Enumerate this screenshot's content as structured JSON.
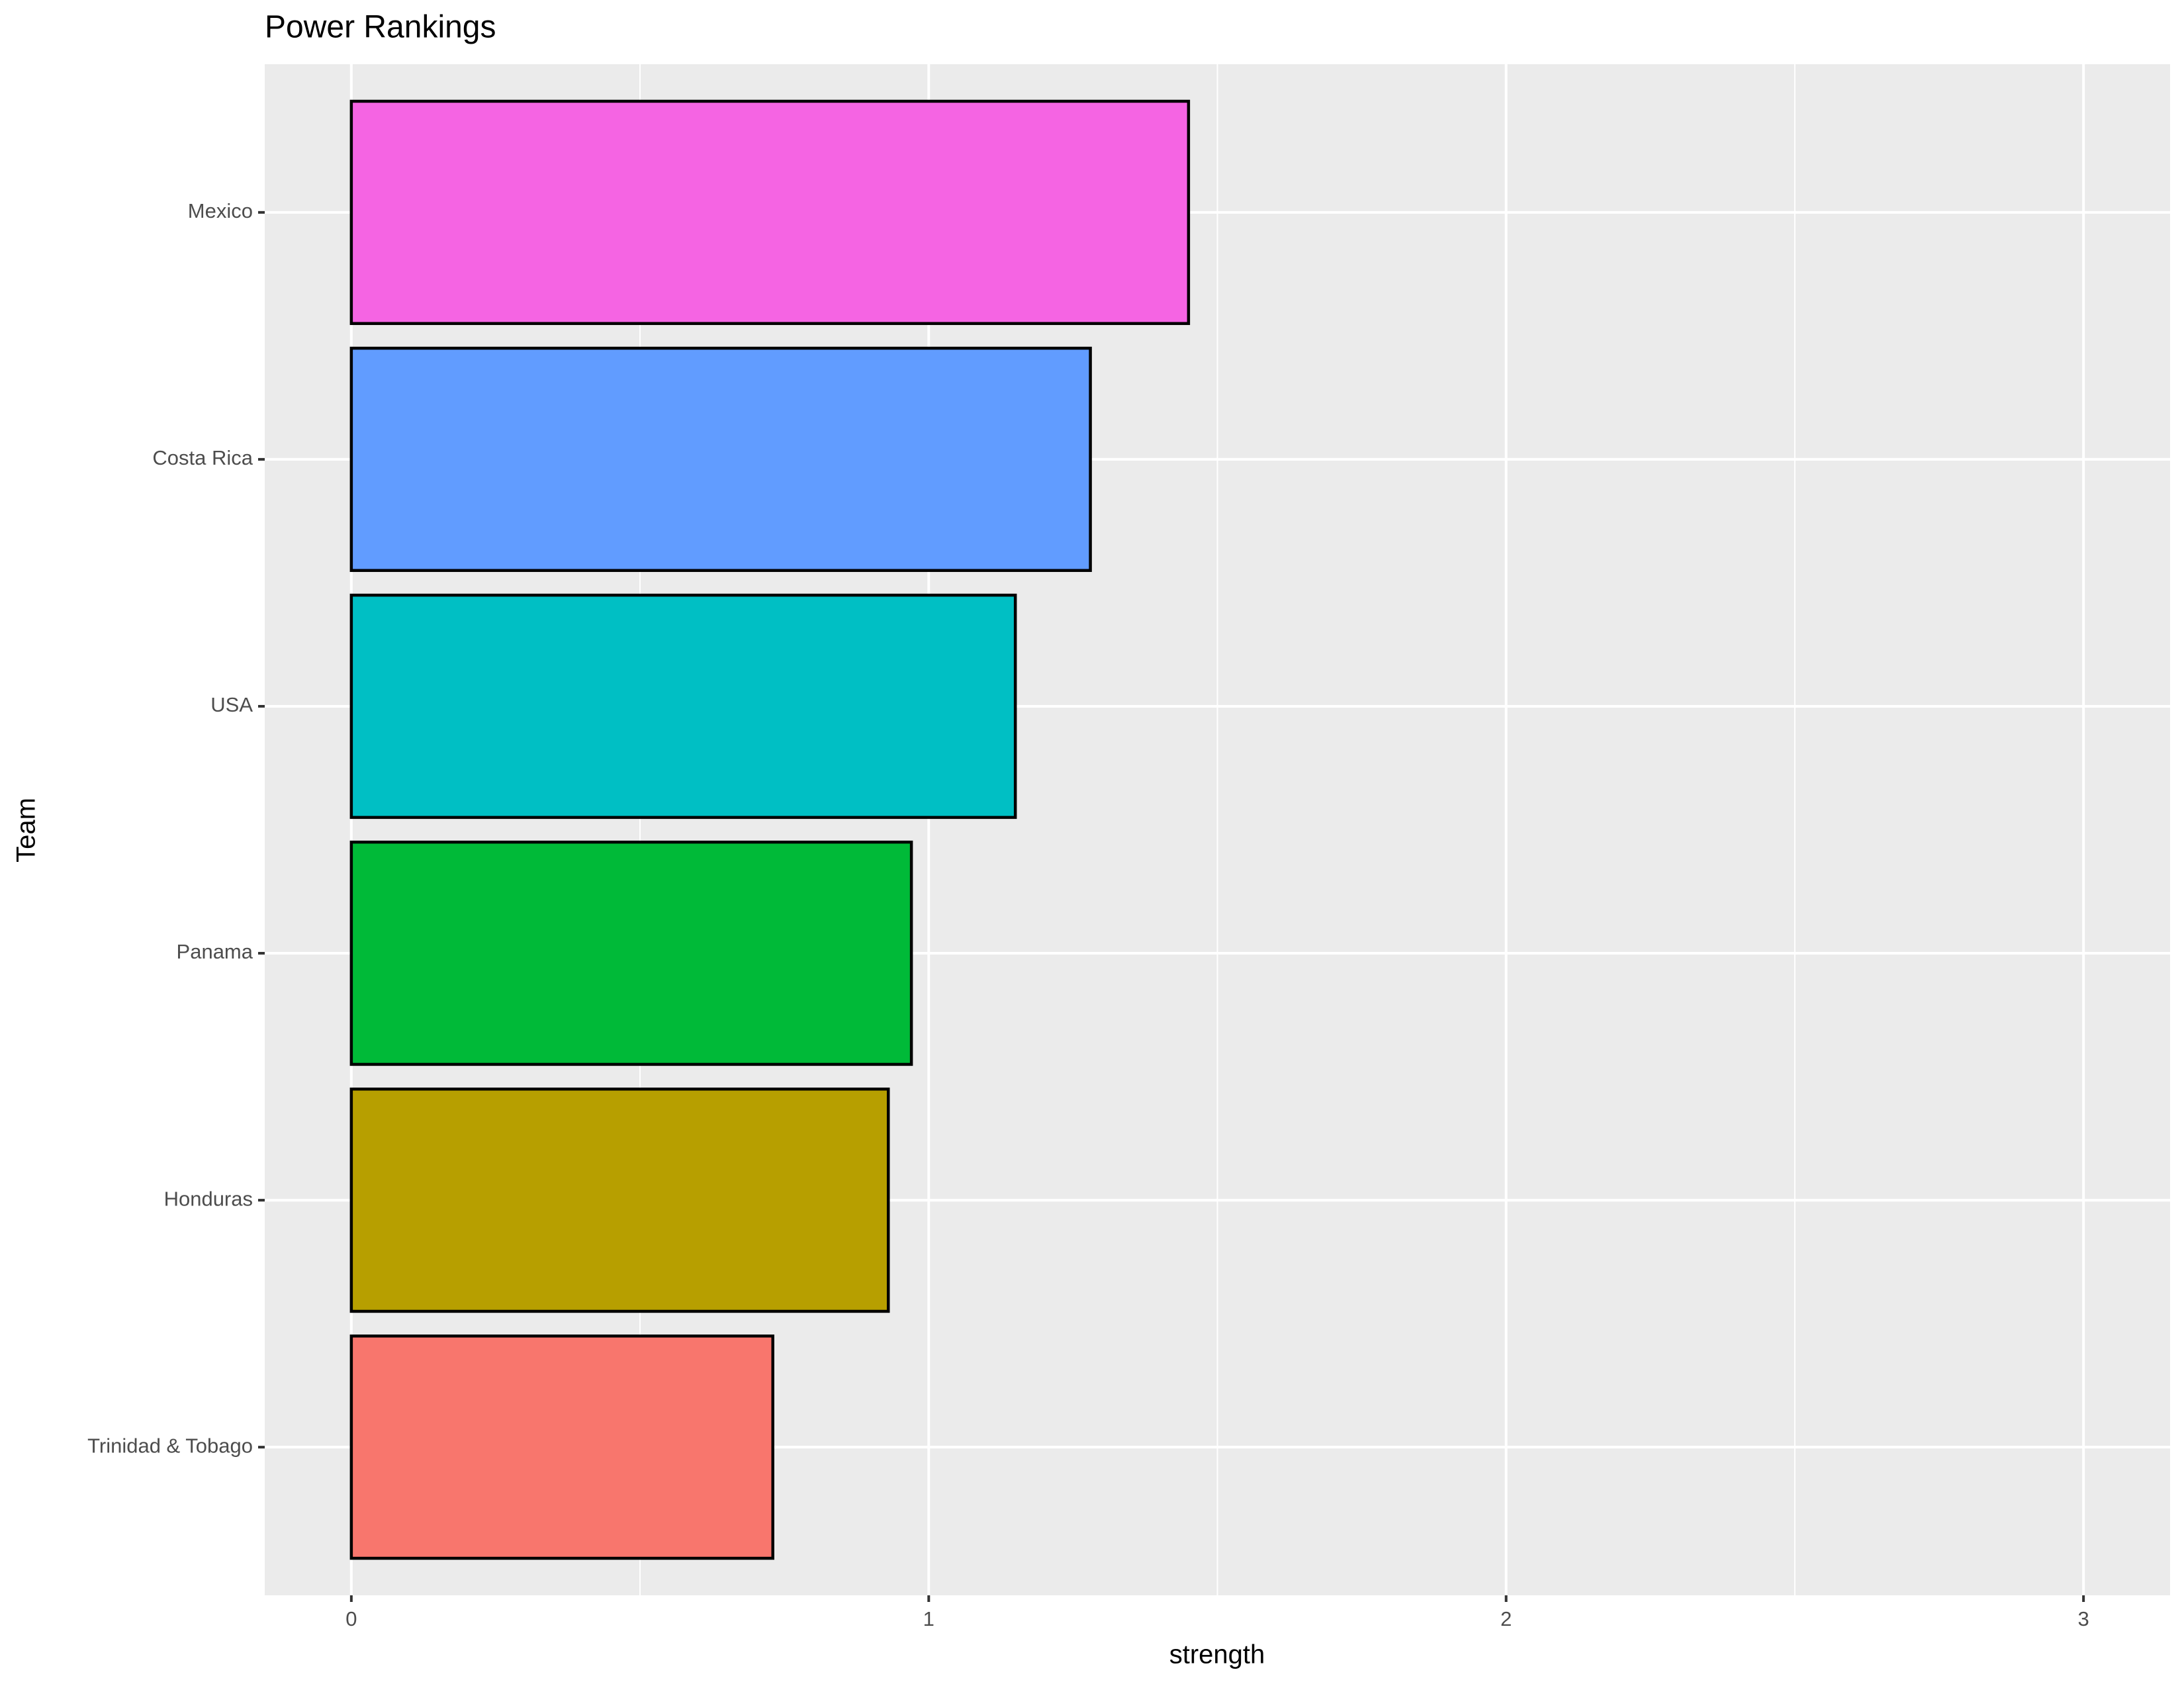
{
  "chart_data": {
    "type": "bar",
    "orientation": "horizontal",
    "title": "Power Rankings",
    "x_label": "strength",
    "y_label": "Team",
    "categories": [
      "Mexico",
      "Costa Rica",
      "USA",
      "Panama",
      "Honduras",
      "Trinidad & Tobago"
    ],
    "values": [
      1.45,
      1.28,
      1.15,
      0.97,
      0.93,
      0.73
    ],
    "colors": [
      "#F564E3",
      "#619CFF",
      "#00BFC4",
      "#00BA38",
      "#B79F00",
      "#F8766D"
    ],
    "xlim": [
      -0.15,
      3.15
    ],
    "xticks": [
      0,
      1,
      2,
      3
    ],
    "grid": true
  }
}
